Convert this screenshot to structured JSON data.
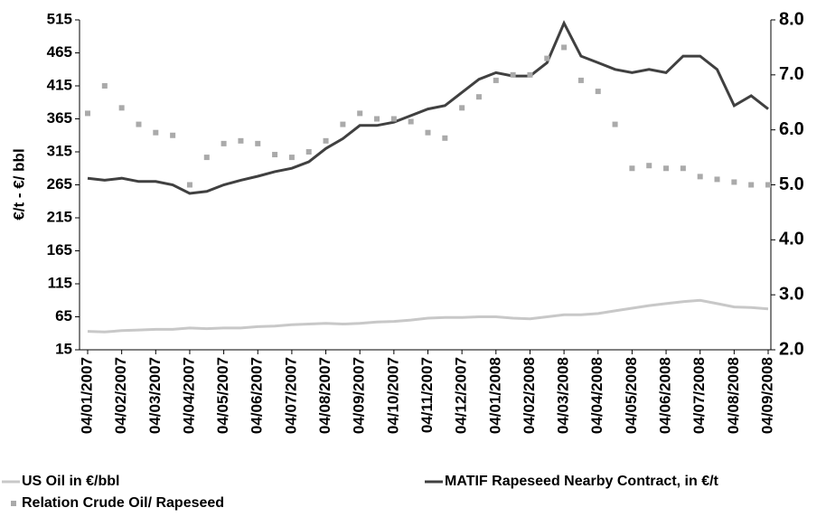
{
  "chart_data": {
    "type": "line",
    "y_label": "€/t - €/ bbl",
    "categories": [
      "04/01/2007",
      null,
      "04/02/2007",
      null,
      "04/03/2007",
      null,
      "04/04/2007",
      null,
      "04/05/2007",
      null,
      "04/06/2007",
      null,
      "04/07/2007",
      null,
      "04/08/2007",
      null,
      "04/09/2007",
      null,
      "04/10/2007",
      null,
      "04/11/2007",
      null,
      "04/12/2007",
      null,
      "04/01/2008",
      null,
      "04/02/2008",
      null,
      "04/03/2008",
      null,
      "04/04/2008",
      null,
      "04/05/2008",
      null,
      "04/06/2008",
      null,
      "04/07/2008",
      null,
      "04/08/2008",
      null,
      "04/09/2008"
    ],
    "series": [
      {
        "name": "US Oil in €/bbl",
        "color": "#c8c8c8",
        "style": "line",
        "axis": "y",
        "values": [
          43,
          42,
          44,
          45,
          46,
          46,
          48,
          47,
          48,
          48,
          50,
          51,
          53,
          54,
          55,
          54,
          55,
          57,
          58,
          60,
          63,
          64,
          64,
          65,
          65,
          63,
          62,
          65,
          68,
          68,
          70,
          74,
          78,
          82,
          85,
          88,
          90,
          85,
          80,
          79,
          77
        ]
      },
      {
        "name": "MATIF Rapeseed Nearby Contract, in €/t",
        "color": "#404040",
        "style": "line",
        "axis": "y",
        "values": [
          275,
          272,
          275,
          270,
          270,
          265,
          252,
          255,
          265,
          272,
          278,
          285,
          290,
          300,
          320,
          335,
          355,
          355,
          360,
          370,
          380,
          385,
          405,
          425,
          435,
          430,
          430,
          450,
          510,
          460,
          450,
          440,
          435,
          440,
          435,
          460,
          460,
          440,
          385,
          400,
          380
        ]
      },
      {
        "name": "Relation Crude Oil/ Rapeseed",
        "color": "#aaaaaa",
        "style": "markers",
        "axis": "y2",
        "values": [
          6.3,
          6.8,
          6.4,
          6.1,
          5.95,
          5.9,
          5.0,
          5.5,
          5.75,
          5.8,
          5.75,
          5.55,
          5.5,
          5.6,
          5.8,
          6.1,
          6.3,
          6.2,
          6.2,
          6.15,
          5.95,
          5.85,
          6.4,
          6.6,
          6.9,
          7.0,
          7.0,
          7.3,
          7.5,
          6.9,
          6.7,
          6.1,
          5.3,
          5.35,
          5.3,
          5.3,
          5.15,
          5.1,
          5.05,
          5.0,
          5.0
        ]
      }
    ],
    "ylim": [
      15,
      515
    ],
    "yticks": [
      15,
      65,
      115,
      165,
      215,
      265,
      315,
      365,
      415,
      465,
      515
    ],
    "y2lim": [
      2,
      8
    ],
    "y2ticks": [
      {
        "value": 2,
        "label": "2.0"
      },
      {
        "value": 3,
        "label": "3.0"
      },
      {
        "value": 4,
        "label": "4.0"
      },
      {
        "value": 5,
        "label": "5.0"
      },
      {
        "value": 6,
        "label": "6.0"
      },
      {
        "value": 7,
        "label": "7.0"
      },
      {
        "value": 8,
        "label": "8.0"
      }
    ],
    "grid": false,
    "legend": "bottom"
  }
}
